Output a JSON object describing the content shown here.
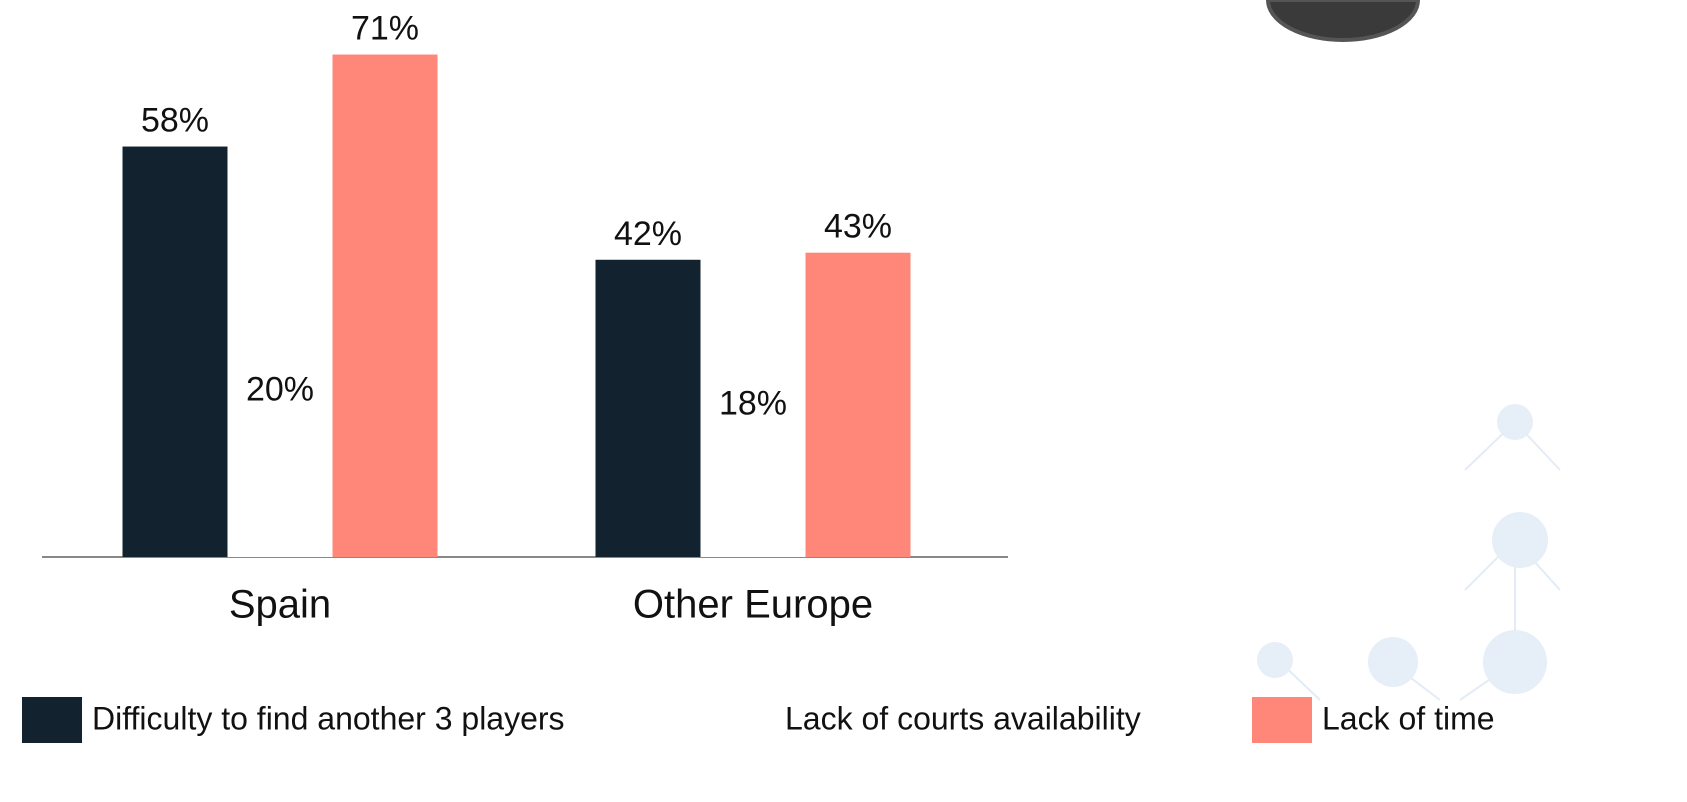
{
  "chart_data": {
    "type": "bar",
    "categories": [
      "Spain",
      "Other Europe"
    ],
    "series": [
      {
        "name": "Difficulty to find another 3 players",
        "color": "#12232f",
        "values": [
          58,
          42
        ],
        "value_labels": [
          "58%",
          "42%"
        ]
      },
      {
        "name": "Lack of courts availability",
        "color": "#ffffff",
        "values": [
          20,
          18
        ],
        "value_labels": [
          "20%",
          "18%"
        ]
      },
      {
        "name": "Lack of time",
        "color": "#fe877a",
        "values": [
          71,
          43
        ],
        "value_labels": [
          "71%",
          "43%"
        ]
      }
    ],
    "ylim": [
      0,
      78
    ]
  }
}
